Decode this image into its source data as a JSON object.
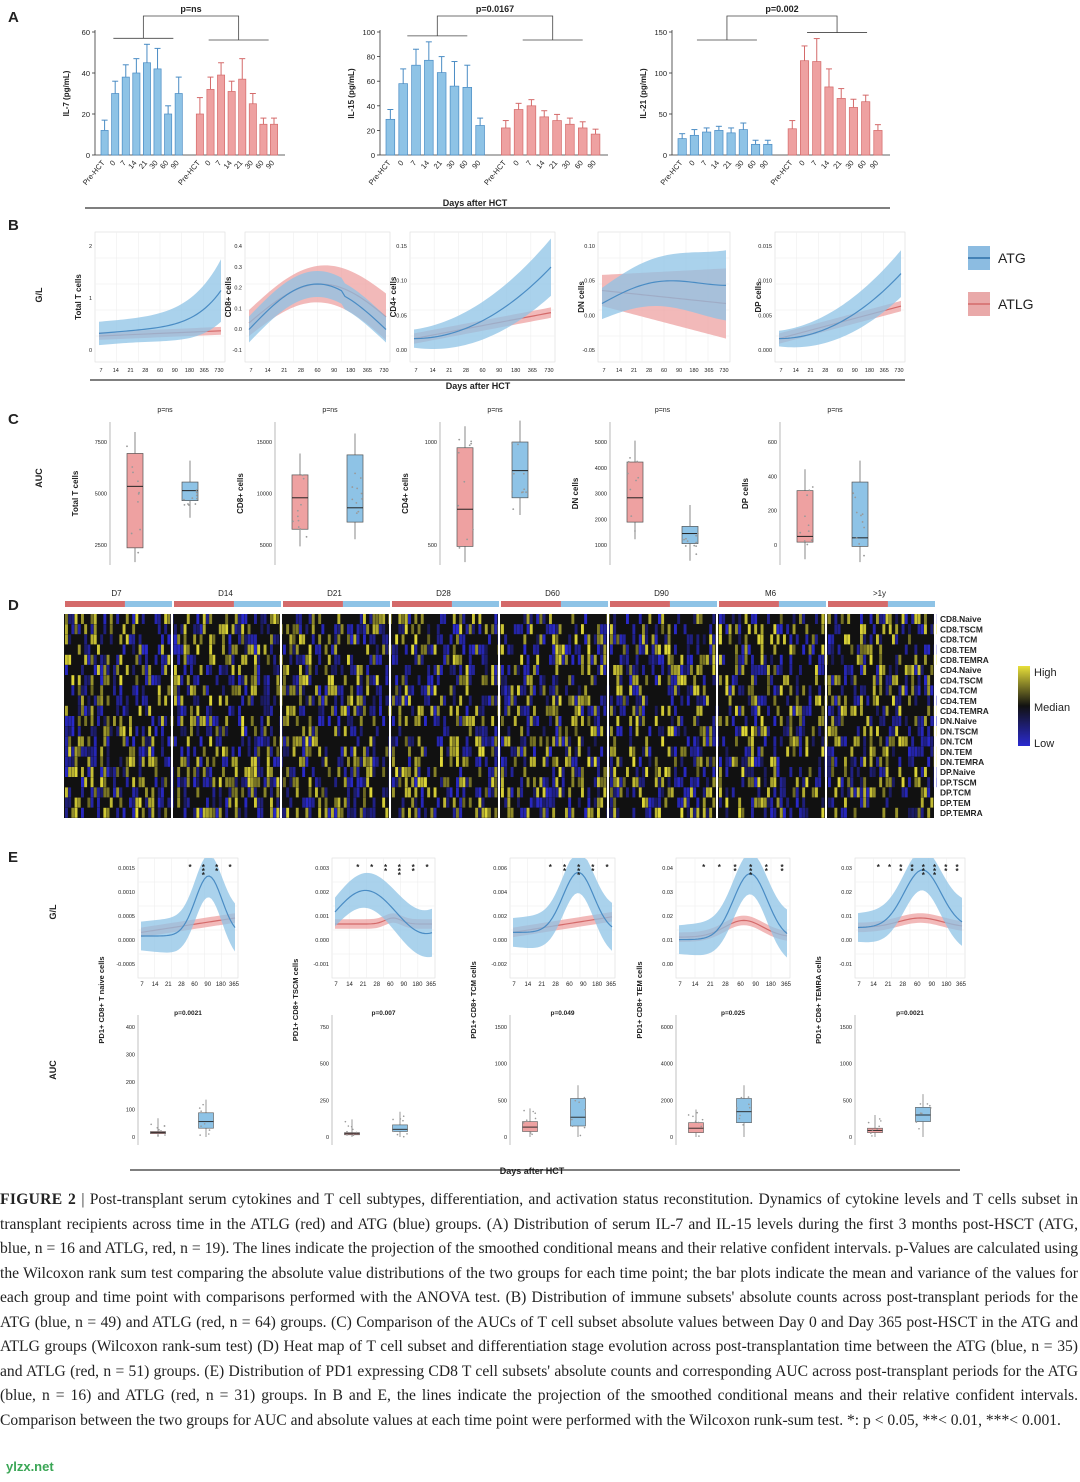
{
  "panels": {
    "A": {
      "label": "A",
      "xlabel": "Days after HCT",
      "groups": [
        "Pre-HCT",
        "0",
        "7",
        "14",
        "21",
        "30",
        "60",
        "90"
      ],
      "charts": [
        {
          "ylabel": "IL-7 (pg/mL)",
          "p": "p=ns",
          "yticks": [
            "0",
            "20",
            "40",
            "60"
          ],
          "ymax": 60,
          "atg": [
            12,
            30,
            38,
            40,
            45,
            42,
            20,
            30
          ],
          "atg_err": [
            5,
            6,
            6,
            7,
            9,
            10,
            4,
            8
          ],
          "atlg": [
            20,
            32,
            39,
            31,
            37,
            25,
            15,
            15
          ],
          "atlg_err": [
            8,
            6,
            6,
            5,
            10,
            5,
            3,
            3
          ]
        },
        {
          "ylabel": "IL-15 (pg/mL)",
          "p": "p=0.0167",
          "yticks": [
            "0",
            "20",
            "40",
            "60",
            "80",
            "100"
          ],
          "ymax": 100,
          "atg": [
            29,
            58,
            73,
            77,
            67,
            56,
            55,
            24
          ],
          "atg_err": [
            8,
            12,
            13,
            15,
            13,
            20,
            18,
            6
          ],
          "atlg": [
            22,
            37,
            40,
            31,
            28,
            25,
            22,
            17
          ],
          "atlg_err": [
            6,
            5,
            5,
            5,
            5,
            5,
            5,
            4
          ]
        },
        {
          "ylabel": "IL-21 (pg/mL)",
          "p": "p=0.002",
          "yticks": [
            "0",
            "50",
            "100",
            "150"
          ],
          "ymax": 150,
          "atg": [
            20,
            24,
            28,
            30,
            27,
            31,
            13,
            13
          ],
          "atg_err": [
            6,
            7,
            5,
            5,
            6,
            8,
            5,
            5
          ],
          "atlg": [
            32,
            115,
            114,
            83,
            69,
            58,
            65,
            30
          ],
          "atlg_err": [
            10,
            18,
            28,
            22,
            12,
            10,
            8,
            7
          ]
        }
      ]
    },
    "B": {
      "label": "B",
      "ylabel": "G/L",
      "xlabel": "Days after HCT",
      "xticks": [
        "7",
        "14",
        "21",
        "28",
        "60",
        "90",
        "180",
        "365",
        "730"
      ],
      "legend": [
        {
          "name": "ATG",
          "color": "#5b9fd4"
        },
        {
          "name": "ATLG",
          "color": "#e08585"
        }
      ],
      "charts": [
        {
          "title": "Total T cells",
          "yticks": [
            "0",
            "1",
            "2"
          ]
        },
        {
          "title": "CD8+ cells",
          "yticks": [
            "-0.1",
            "0.0",
            "0.1",
            "0.2",
            "0.3",
            "0.4"
          ]
        },
        {
          "title": "CD4+ cells",
          "yticks": [
            "0.00",
            "0.05",
            "0.10",
            "0.15"
          ]
        },
        {
          "title": "DN cells",
          "yticks": [
            "-0.05",
            "0.00",
            "0.05",
            "0.10"
          ]
        },
        {
          "title": "DP cells",
          "yticks": [
            "0.000",
            "0.005",
            "0.010",
            "0.015"
          ]
        }
      ]
    },
    "C": {
      "label": "C",
      "ylabel": "AUC",
      "charts": [
        {
          "title": "Total T cells",
          "p": "p=ns",
          "yticks": [
            "2500",
            "5000",
            "7500"
          ]
        },
        {
          "title": "CD8+ cells",
          "p": "p=ns",
          "yticks": [
            "5000",
            "10000",
            "15000"
          ]
        },
        {
          "title": "CD4+ cells",
          "p": "p=ns",
          "yticks": [
            "500",
            "1000"
          ]
        },
        {
          "title": "DN cells",
          "p": "p=ns",
          "yticks": [
            "1000",
            "2000",
            "3000",
            "4000",
            "5000"
          ]
        },
        {
          "title": "DP cells",
          "p": "p=ns",
          "yticks": [
            "0",
            "200",
            "400",
            "600"
          ]
        }
      ]
    },
    "D": {
      "label": "D",
      "timepoints": [
        "D7",
        "D14",
        "D21",
        "D28",
        "D60",
        "D90",
        "M6",
        ">1y"
      ],
      "rows": [
        "CD8.Naive",
        "CD8.TSCM",
        "CD8.TCM",
        "CD8.TEM",
        "CD8.TEMRA",
        "CD4.Naive",
        "CD4.TSCM",
        "CD4.TCM",
        "CD4.TEM",
        "CD4.TEMRA",
        "DN.Naive",
        "DN.TSCM",
        "DN.TCM",
        "DN.TEM",
        "DN.TEMRA",
        "DP.Naive",
        "DP.TSCM",
        "DP.TCM",
        "DP.TEM",
        "DP.TEMRA"
      ],
      "scale": [
        "High",
        "Median",
        "Low"
      ]
    },
    "E": {
      "label": "E",
      "ylabel_top": "G/L",
      "ylabel_bottom": "AUC",
      "xlabel": "Days after HCT",
      "xticks": [
        "7",
        "14",
        "21",
        "28",
        "60",
        "90",
        "180",
        "365"
      ],
      "charts": [
        {
          "title": "PD1+ CD8+ T naive cells",
          "p": "p=0.0021",
          "yticks_top": [
            "-0.0005",
            "0.0000",
            "0.0005",
            "0.0010",
            "0.0015"
          ],
          "yticks_bottom": [
            "0",
            "100",
            "200",
            "300",
            "400"
          ],
          "stars": [
            "*",
            "***",
            "**",
            "*"
          ]
        },
        {
          "title": "PD1+ CD8+ TSCM cells",
          "p": "p=0.007",
          "yticks_top": [
            "-0.001",
            "0.000",
            "0.001",
            "0.002",
            "0.003"
          ],
          "yticks_bottom": [
            "0",
            "250",
            "500",
            "750"
          ],
          "stars": [
            "*",
            "*",
            "**",
            "***",
            "**",
            "*"
          ]
        },
        {
          "title": "PD1+ CD8+ TCM cells",
          "p": "p=0.049",
          "yticks_top": [
            "-0.002",
            "0.000",
            "0.002",
            "0.004",
            "0.006"
          ],
          "yticks_bottom": [
            "0",
            "500",
            "1000",
            "1500"
          ],
          "stars": [
            "*",
            "**",
            "***",
            "**",
            "*"
          ]
        },
        {
          "title": "PD1+ CD8+ TEM cells",
          "p": "p=0.025",
          "yticks_top": [
            "0.00",
            "0.01",
            "0.02",
            "0.03",
            "0.04"
          ],
          "yticks_bottom": [
            "0",
            "2000",
            "4000",
            "6000"
          ],
          "stars": [
            "*",
            "*",
            "**",
            "***",
            "**",
            "**"
          ]
        },
        {
          "title": "PD1+ CD8+ TEMRA cells",
          "p": "p=0.0021",
          "yticks_top": [
            "-0.01",
            "0.00",
            "0.01",
            "0.02",
            "0.03"
          ],
          "yticks_bottom": [
            "0",
            "500",
            "1000",
            "1500"
          ],
          "stars": [
            "*",
            "*",
            "**",
            "**",
            "***",
            "***",
            "**",
            "**"
          ]
        }
      ]
    }
  },
  "caption": {
    "label": "FIGURE 2",
    "sep": " | ",
    "text": "Post-transplant serum cytokines and T cell subtypes, differentiation, and activation status reconstitution. Dynamics of cytokine levels and T cells subset in transplant recipients across time in the ATLG (red) and ATG (blue) groups. (A) Distribution of serum IL-7 and IL-15 levels during the first 3 months post-HSCT (ATG, blue, n = 16 and ATLG, red, n = 19). The lines indicate the projection of the smoothed conditional means and their relative confident intervals. p-Values are calculated using the Wilcoxon rank sum test comparing the absolute value distributions of the two groups for each time point; the bar plots indicate the mean and variance of the values for each group and time point with comparisons performed with the ANOVA test. (B) Distribution of immune subsets' absolute counts across post-transplant periods for the ATG (blue, n = 49) and ATLG (red, n = 64) groups. (C) Comparison of the AUCs of T cell subset absolute values between Day 0 and Day 365 post-HSCT in the ATG and ATLG groups (Wilcoxon rank-sum test) (D) Heat map of T cell subset and differentiation stage evolution across post-transplantation time between the ATG (blue, n = 35) and ATLG (red, n = 51) groups. (E) Distribution of PD1 expressing CD8 T cell subsets' absolute counts and corresponding AUC across post-transplant periods for the ATG (blue, n = 16) and ATLG (red, n = 31) groups. In B and E, the lines indicate the projection of the smoothed conditional means and their relative confident intervals. Comparison between the two groups for AUC and absolute values at each time point were performed with the Wilcoxon runk-sum test. *: p < 0.05, **< 0.01, ***< 0.001."
  },
  "watermark": "ylzx.net",
  "colors": {
    "atg": "#8ec3e6",
    "atg_line": "#4a8cc4",
    "atlg": "#eea1a1",
    "atlg_line": "#d46a6a",
    "heat_high": "#e8e03a",
    "heat_low": "#2a2ad0",
    "heat_mid": "#111111"
  }
}
